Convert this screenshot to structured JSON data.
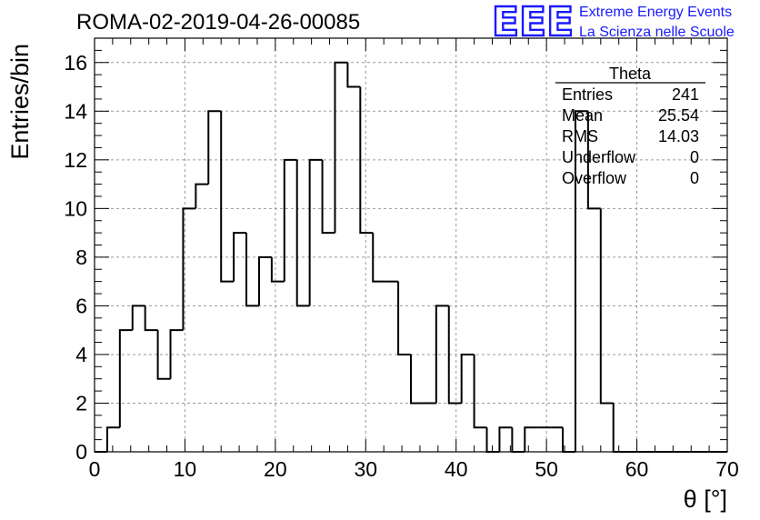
{
  "title": "ROMA-02-2019-04-26-00085",
  "logo": {
    "mark": "EEE",
    "line1": "Extreme Energy Events",
    "line2": "La Scienza nelle Scuole",
    "color": "#1a1aff"
  },
  "stats_box": {
    "title": "Theta",
    "rows": [
      {
        "label": "Entries",
        "value": "241"
      },
      {
        "label": "Mean",
        "value": "25.54"
      },
      {
        "label": "RMS",
        "value": "14.03"
      },
      {
        "label": "Underflow",
        "value": "0"
      },
      {
        "label": "Overflow",
        "value": "0"
      }
    ]
  },
  "chart_data": {
    "type": "bar",
    "style": "histogram-step",
    "title": "ROMA-02-2019-04-26-00085",
    "xlabel": "θ [°]",
    "ylabel": "Entries/bin",
    "xlim": [
      0,
      70
    ],
    "ylim": [
      0,
      17
    ],
    "grid": true,
    "legend": "none",
    "x_ticks": [
      "0",
      "10",
      "20",
      "30",
      "40",
      "50",
      "60",
      "70"
    ],
    "y_ticks": [
      "0",
      "2",
      "4",
      "6",
      "8",
      "10",
      "12",
      "14",
      "16"
    ],
    "bin_width": 1.4,
    "bin_start": 0,
    "values": [
      0,
      1,
      5,
      6,
      5,
      3,
      5,
      10,
      11,
      14,
      7,
      9,
      6,
      8,
      7,
      12,
      6,
      12,
      9,
      16,
      15,
      9,
      7,
      7,
      4,
      2,
      2,
      6,
      2,
      4,
      1,
      0,
      1,
      0,
      1,
      1,
      1,
      0,
      14,
      10,
      2,
      0,
      0,
      0,
      0,
      0,
      0,
      0,
      0,
      0
    ]
  }
}
